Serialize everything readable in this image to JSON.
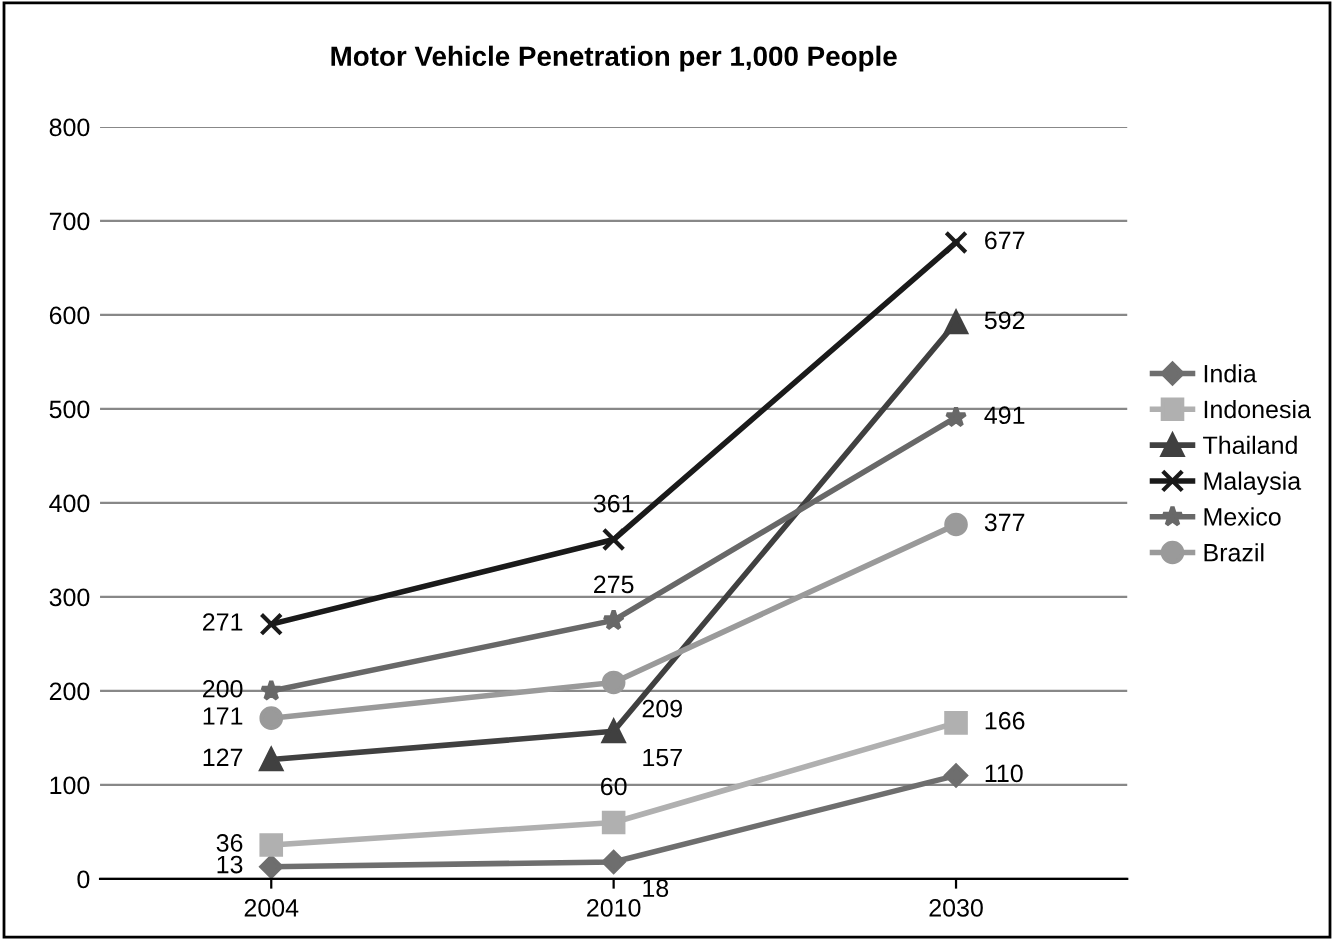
{
  "chart_data": {
    "type": "line",
    "title": "Motor Vehicle Penetration per 1,000 People",
    "categories": [
      "2004",
      "2010",
      "2030"
    ],
    "series": [
      {
        "name": "India",
        "color": "#6e6e6e",
        "marker": "diamond",
        "values": [
          13,
          18,
          110
        ]
      },
      {
        "name": "Indonesia",
        "color": "#b0b0b0",
        "marker": "square",
        "values": [
          36,
          60,
          166
        ]
      },
      {
        "name": "Thailand",
        "color": "#404040",
        "marker": "triangle",
        "values": [
          127,
          157,
          592
        ]
      },
      {
        "name": "Malaysia",
        "color": "#1a1a1a",
        "marker": "cross",
        "values": [
          271,
          361,
          677
        ]
      },
      {
        "name": "Mexico",
        "color": "#686868",
        "marker": "star",
        "values": [
          200,
          275,
          491
        ]
      },
      {
        "name": "Brazil",
        "color": "#9a9a9a",
        "marker": "circle",
        "values": [
          171,
          209,
          377
        ]
      }
    ],
    "ylim": [
      0,
      800
    ],
    "yticks": [
      0,
      100,
      200,
      300,
      400,
      500,
      600,
      700,
      800
    ],
    "grid": "y",
    "legend": "right",
    "data_labels": true
  }
}
